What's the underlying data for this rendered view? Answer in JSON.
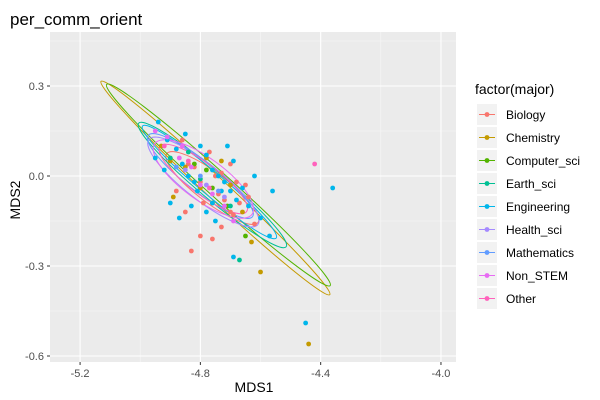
{
  "chart_data": {
    "type": "scatter",
    "title": "per_comm_orient",
    "xlabel": "MDS1",
    "ylabel": "MDS2",
    "xlim": [
      -5.3,
      -3.95
    ],
    "ylim": [
      -0.62,
      0.48
    ],
    "xticks": [
      -5.2,
      -4.8,
      -4.4,
      -4.0
    ],
    "xtick_labels": [
      "-5.2",
      "-4.8",
      "-4.4",
      "-4.0"
    ],
    "yticks": [
      -0.6,
      -0.3,
      0.0,
      0.3
    ],
    "ytick_labels": [
      "-0.6",
      "-0.3",
      "0.0",
      "0.3"
    ],
    "grid": true,
    "legend": {
      "title": "factor(major)",
      "placement": "right"
    },
    "series": [
      {
        "name": "Biology",
        "color": "#F8766D",
        "points": [
          [
            -4.86,
            0.12
          ],
          [
            -4.84,
            0.04
          ],
          [
            -4.82,
            0.03
          ],
          [
            -4.8,
            -0.02
          ],
          [
            -4.77,
            0.08
          ],
          [
            -4.75,
            0.0
          ],
          [
            -4.74,
            -0.06
          ],
          [
            -4.72,
            -0.08
          ],
          [
            -4.7,
            0.04
          ],
          [
            -4.69,
            -0.13
          ],
          [
            -4.67,
            -0.09
          ],
          [
            -4.65,
            -0.03
          ],
          [
            -4.64,
            -0.07
          ],
          [
            -4.62,
            -0.16
          ],
          [
            -4.85,
            -0.12
          ],
          [
            -4.8,
            -0.2
          ],
          [
            -4.76,
            -0.21
          ],
          [
            -4.73,
            -0.17
          ],
          [
            -4.7,
            -0.12
          ],
          [
            -4.83,
            -0.25
          ],
          [
            -4.88,
            -0.05
          ],
          [
            -4.68,
            -0.02
          ],
          [
            -4.79,
            -0.09
          ],
          [
            -4.73,
            0.01
          ]
        ],
        "ellipse": {
          "center": [
            -4.76,
            -0.04
          ],
          "rx": 0.19,
          "ry": 0.05,
          "angle": 37
        }
      },
      {
        "name": "Chemistry",
        "color": "#C49A00",
        "points": [
          [
            -4.93,
            0.1
          ],
          [
            -4.9,
            0.05
          ],
          [
            -4.85,
            0.03
          ],
          [
            -4.8,
            -0.04
          ],
          [
            -4.76,
            -0.09
          ],
          [
            -4.73,
            0.05
          ],
          [
            -4.7,
            -0.03
          ],
          [
            -4.66,
            -0.12
          ],
          [
            -4.63,
            -0.22
          ],
          [
            -4.6,
            -0.32
          ],
          [
            -4.44,
            -0.56
          ],
          [
            -4.89,
            -0.07
          ],
          [
            -4.78,
            0.06
          ]
        ],
        "ellipse": {
          "center": [
            -4.75,
            -0.04
          ],
          "rx": 0.52,
          "ry": 0.035,
          "angle": 43
        }
      },
      {
        "name": "Computer_sci",
        "color": "#53B400",
        "points": [
          [
            -4.82,
            0.04
          ],
          [
            -4.76,
            -0.04
          ],
          [
            -4.71,
            -0.1
          ],
          [
            -4.65,
            -0.2
          ],
          [
            -4.78,
            0.02
          ]
        ],
        "ellipse": {
          "center": [
            -4.74,
            -0.03
          ],
          "rx": 0.5,
          "ry": 0.04,
          "angle": 42
        }
      },
      {
        "name": "Earth_sci",
        "color": "#00C094",
        "points": [
          [
            -4.9,
            0.06
          ],
          [
            -4.8,
            -0.01
          ],
          [
            -4.7,
            -0.1
          ],
          [
            -4.67,
            -0.28
          ],
          [
            -4.84,
            0.08
          ]
        ],
        "ellipse": {
          "center": [
            -4.76,
            -0.03
          ],
          "rx": 0.32,
          "ry": 0.045,
          "angle": 40
        }
      },
      {
        "name": "Engineering",
        "color": "#00B6EB",
        "points": [
          [
            -4.94,
            0.18
          ],
          [
            -4.91,
            0.12
          ],
          [
            -4.88,
            0.09
          ],
          [
            -4.86,
            0.04
          ],
          [
            -4.84,
            0.0
          ],
          [
            -4.82,
            -0.02
          ],
          [
            -4.8,
            0.1
          ],
          [
            -4.78,
            0.07
          ],
          [
            -4.76,
            0.02
          ],
          [
            -4.74,
            0.0
          ],
          [
            -4.72,
            -0.02
          ],
          [
            -4.7,
            -0.05
          ],
          [
            -4.68,
            -0.08
          ],
          [
            -4.71,
            0.1
          ],
          [
            -4.69,
            0.05
          ],
          [
            -4.66,
            -0.04
          ],
          [
            -4.64,
            -0.1
          ],
          [
            -4.6,
            -0.14
          ],
          [
            -4.57,
            -0.2
          ],
          [
            -4.9,
            -0.09
          ],
          [
            -4.87,
            -0.14
          ],
          [
            -4.83,
            -0.1
          ],
          [
            -4.78,
            -0.12
          ],
          [
            -4.75,
            -0.15
          ],
          [
            -4.92,
            0.02
          ],
          [
            -4.95,
            0.06
          ],
          [
            -4.45,
            -0.49
          ],
          [
            -4.36,
            -0.04
          ],
          [
            -4.69,
            -0.27
          ],
          [
            -4.56,
            -0.05
          ],
          [
            -4.85,
            0.14
          ],
          [
            -4.62,
            0.0
          ],
          [
            -4.73,
            -0.05
          ],
          [
            -4.81,
            -0.05
          ],
          [
            -4.76,
            -0.09
          ]
        ],
        "ellipse": {
          "center": [
            -4.77,
            -0.02
          ],
          "rx": 0.29,
          "ry": 0.038,
          "angle": 40
        }
      },
      {
        "name": "Health_sci",
        "color": "#A58AFF",
        "points": [
          [
            -4.85,
            0.02
          ],
          [
            -4.78,
            -0.03
          ],
          [
            -4.72,
            -0.07
          ]
        ],
        "ellipse": {
          "center": [
            -4.79,
            -0.02
          ],
          "rx": 0.23,
          "ry": 0.06,
          "angle": 38
        }
      },
      {
        "name": "Mathematics",
        "color": "#619CFF",
        "points": [
          [
            -4.88,
            0.03
          ],
          [
            -4.8,
            0.0
          ],
          [
            -4.74,
            -0.05
          ]
        ],
        "ellipse": {
          "center": [
            -4.8,
            0.0
          ],
          "rx": 0.22,
          "ry": 0.05,
          "angle": 38
        }
      },
      {
        "name": "Non_STEM",
        "color": "#E76BF3",
        "points": [
          [
            -4.95,
            0.15
          ],
          [
            -4.91,
            0.13
          ],
          [
            -4.87,
            0.06
          ],
          [
            -4.83,
            0.03
          ],
          [
            -4.8,
            -0.03
          ],
          [
            -4.76,
            -0.06
          ],
          [
            -4.72,
            -0.1
          ],
          [
            -4.69,
            -0.15
          ],
          [
            -4.86,
            0.1
          ]
        ],
        "ellipse": {
          "center": [
            -4.79,
            -0.01
          ],
          "rx": 0.2,
          "ry": 0.07,
          "angle": 36
        }
      },
      {
        "name": "Other",
        "color": "#FF62BC",
        "points": [
          [
            -4.92,
            0.1
          ],
          [
            -4.84,
            0.05
          ],
          [
            -4.77,
            -0.04
          ],
          [
            -4.42,
            0.04
          ]
        ],
        "ellipse": {
          "center": [
            -4.79,
            -0.01
          ],
          "rx": 0.18,
          "ry": 0.05,
          "angle": 37
        }
      }
    ]
  }
}
